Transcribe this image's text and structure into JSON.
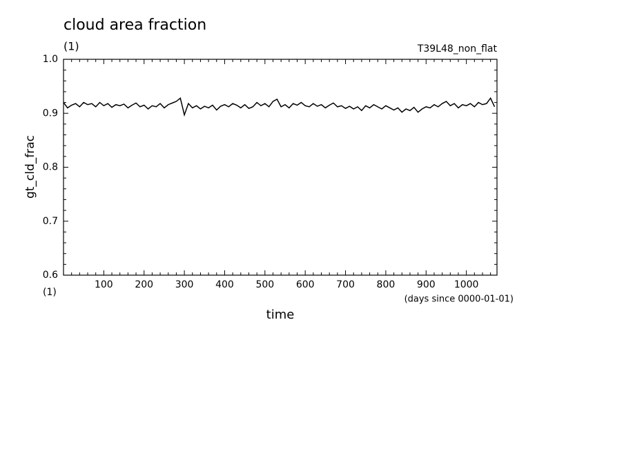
{
  "chart_data": {
    "type": "line",
    "title": "cloud area fraction",
    "subtitle": "(1)",
    "annotation": "T39L48_non_flat",
    "y_label": "gt_cld_frac",
    "x_unit_label": "(1)",
    "x_label_note": "(days since 0000-01-01)",
    "x_label": "time",
    "color": "#000000",
    "xlim": [
      0,
      1076
    ],
    "ylim": [
      0.6,
      1
    ],
    "xticks": [
      100,
      200,
      300,
      400,
      500,
      600,
      700,
      800,
      900,
      1000
    ],
    "yticks": [
      0.6,
      0.7,
      0.8,
      0.9,
      {
        "value": 1,
        "label": "1.0"
      }
    ],
    "xminorticks": [
      20,
      40,
      60,
      80,
      120,
      140,
      160,
      180,
      220,
      240,
      260,
      280,
      320,
      340,
      360,
      380,
      420,
      440,
      460,
      480,
      520,
      540,
      560,
      580,
      620,
      640,
      660,
      680,
      720,
      740,
      760,
      780,
      820,
      840,
      860,
      880,
      920,
      940,
      960,
      980,
      1020,
      1040,
      1060
    ],
    "yminorticks": [
      0.62,
      0.64,
      0.66,
      0.68,
      0.72,
      0.74,
      0.76,
      0.78,
      0.82,
      0.84,
      0.86,
      0.88,
      0.92,
      0.94,
      0.96,
      0.98
    ],
    "x": [
      0,
      10,
      20,
      30,
      40,
      50,
      60,
      70,
      80,
      90,
      100,
      110,
      120,
      130,
      140,
      150,
      160,
      170,
      180,
      190,
      200,
      210,
      220,
      230,
      240,
      250,
      260,
      270,
      280,
      290,
      300,
      310,
      320,
      330,
      340,
      350,
      360,
      370,
      380,
      390,
      400,
      410,
      420,
      430,
      440,
      450,
      460,
      470,
      480,
      490,
      500,
      510,
      520,
      530,
      540,
      550,
      560,
      570,
      580,
      590,
      600,
      610,
      620,
      630,
      640,
      650,
      660,
      670,
      680,
      690,
      700,
      710,
      720,
      730,
      740,
      750,
      760,
      770,
      780,
      790,
      800,
      810,
      820,
      830,
      840,
      850,
      860,
      870,
      880,
      890,
      900,
      910,
      920,
      930,
      940,
      950,
      960,
      970,
      980,
      990,
      1000,
      1010,
      1020,
      1030,
      1040,
      1050,
      1060,
      1070
    ],
    "values": [
      0.92,
      0.91,
      0.915,
      0.918,
      0.912,
      0.92,
      0.916,
      0.918,
      0.912,
      0.92,
      0.914,
      0.918,
      0.911,
      0.916,
      0.914,
      0.917,
      0.91,
      0.915,
      0.919,
      0.912,
      0.915,
      0.908,
      0.914,
      0.912,
      0.918,
      0.91,
      0.916,
      0.919,
      0.922,
      0.928,
      0.897,
      0.918,
      0.91,
      0.914,
      0.908,
      0.913,
      0.91,
      0.915,
      0.906,
      0.913,
      0.916,
      0.912,
      0.918,
      0.915,
      0.91,
      0.916,
      0.909,
      0.912,
      0.92,
      0.914,
      0.918,
      0.912,
      0.922,
      0.926,
      0.912,
      0.916,
      0.91,
      0.918,
      0.915,
      0.92,
      0.914,
      0.912,
      0.918,
      0.913,
      0.916,
      0.91,
      0.915,
      0.919,
      0.912,
      0.914,
      0.909,
      0.913,
      0.908,
      0.912,
      0.905,
      0.914,
      0.91,
      0.916,
      0.912,
      0.908,
      0.914,
      0.91,
      0.906,
      0.91,
      0.902,
      0.908,
      0.905,
      0.911,
      0.902,
      0.908,
      0.912,
      0.91,
      0.916,
      0.912,
      0.918,
      0.922,
      0.914,
      0.918,
      0.91,
      0.916,
      0.914,
      0.918,
      0.912,
      0.92,
      0.916,
      0.918,
      0.928,
      0.912
    ]
  }
}
